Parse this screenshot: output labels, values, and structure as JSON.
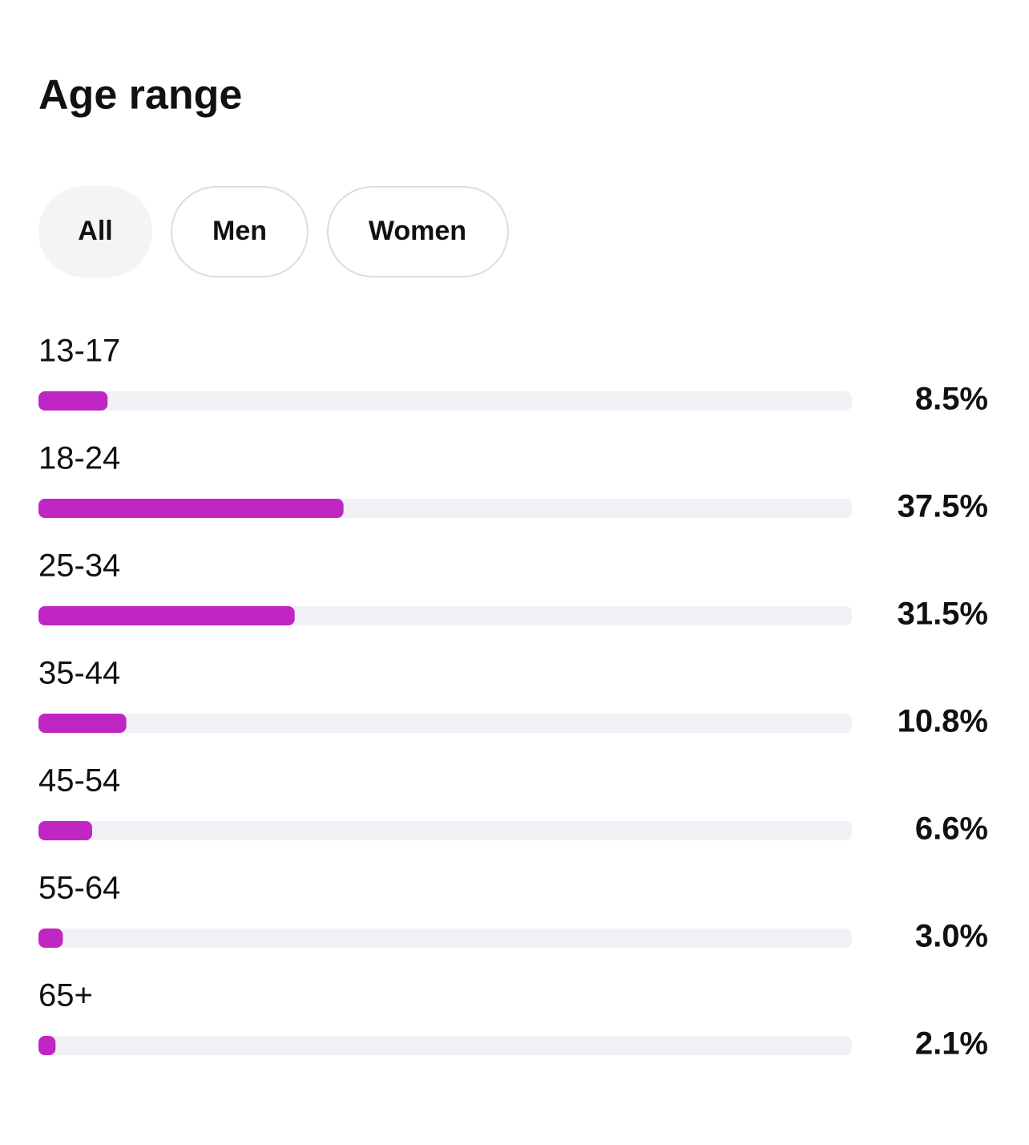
{
  "header": {
    "title": "Age range"
  },
  "tabs": [
    "All",
    "Men",
    "Women"
  ],
  "chart_data": {
    "type": "bar",
    "orientation": "horizontal",
    "categories": [
      "13-17",
      "18-24",
      "25-34",
      "35-44",
      "45-54",
      "55-64",
      "65+"
    ],
    "values": [
      8.5,
      37.5,
      31.5,
      10.8,
      6.6,
      3.0,
      2.1
    ],
    "value_labels": [
      "8.5%",
      "37.5%",
      "31.5%",
      "10.8%",
      "6.6%",
      "3.0%",
      "2.1%"
    ],
    "color": "#c026c3",
    "xlim": [
      0,
      100
    ]
  }
}
